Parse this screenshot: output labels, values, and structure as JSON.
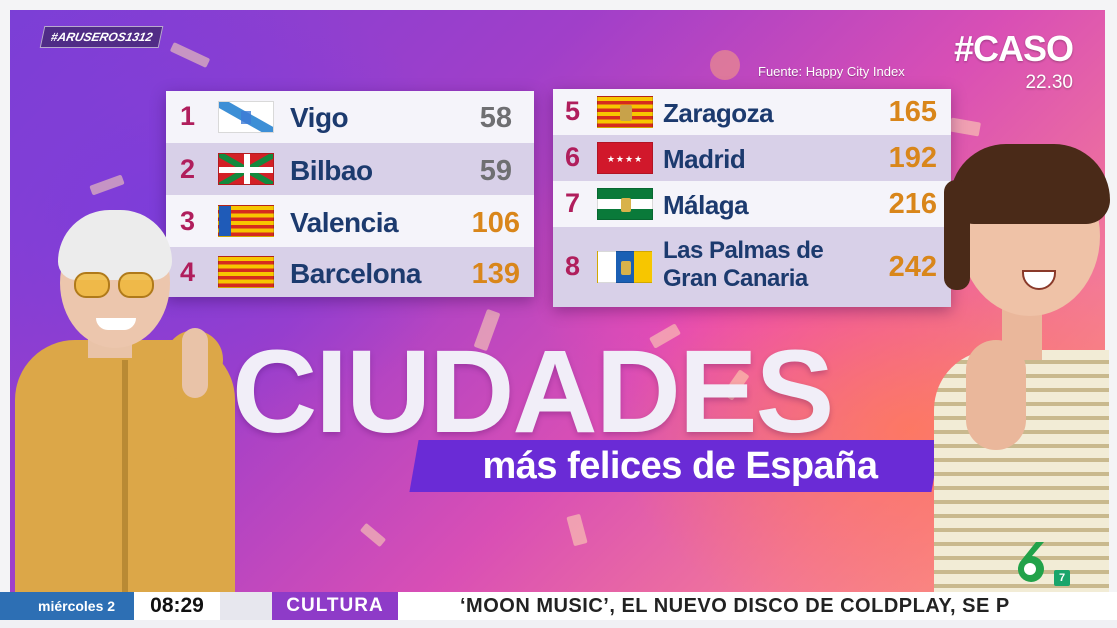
{
  "overlay": {
    "hashtag": "#ARUSEROS1312",
    "caso": "#CASO",
    "caso_time": "22.30",
    "source": "Fuente: Happy City Index"
  },
  "ranking_left": [
    {
      "rank": "1",
      "city": "Vigo",
      "score": "58",
      "flag": "galicia-flag"
    },
    {
      "rank": "2",
      "city": "Bilbao",
      "score": "59",
      "flag": "basque-flag"
    },
    {
      "rank": "3",
      "city": "Valencia",
      "score": "106",
      "flag": "valencia-flag"
    },
    {
      "rank": "4",
      "city": "Barcelona",
      "score": "139",
      "flag": "catalonia-flag"
    }
  ],
  "ranking_right": [
    {
      "rank": "5",
      "city": "Zaragoza",
      "score": "165",
      "flag": "aragon-flag"
    },
    {
      "rank": "6",
      "city": "Madrid",
      "score": "192",
      "flag": "madrid-flag"
    },
    {
      "rank": "7",
      "city": "Málaga",
      "score": "216",
      "flag": "andalusia-flag"
    },
    {
      "rank": "8",
      "city_line1": "Las Palmas de",
      "city_line2": "Gran Canaria",
      "score": "242",
      "flag": "canary-flag"
    }
  ],
  "title": {
    "big": "CIUDADES",
    "small": "más felices de España"
  },
  "channel": {
    "logo_number": "6",
    "sub_badge": "7"
  },
  "ticker": {
    "date": "miércoles 2",
    "time": "08:29",
    "section": "CULTURA",
    "headline": "‘MOON MUSIC’, EL NUEVO DISCO DE COLDPLAY, SE P"
  },
  "colors": {
    "rank": "#b01e5c",
    "city": "#1c3a6e",
    "score_grey": "#6f6f72",
    "score_orange": "#d9861a",
    "band": "#6a2bd6",
    "ticker_date": "#2d6fb4",
    "ticker_section": "#8e3bc8"
  }
}
